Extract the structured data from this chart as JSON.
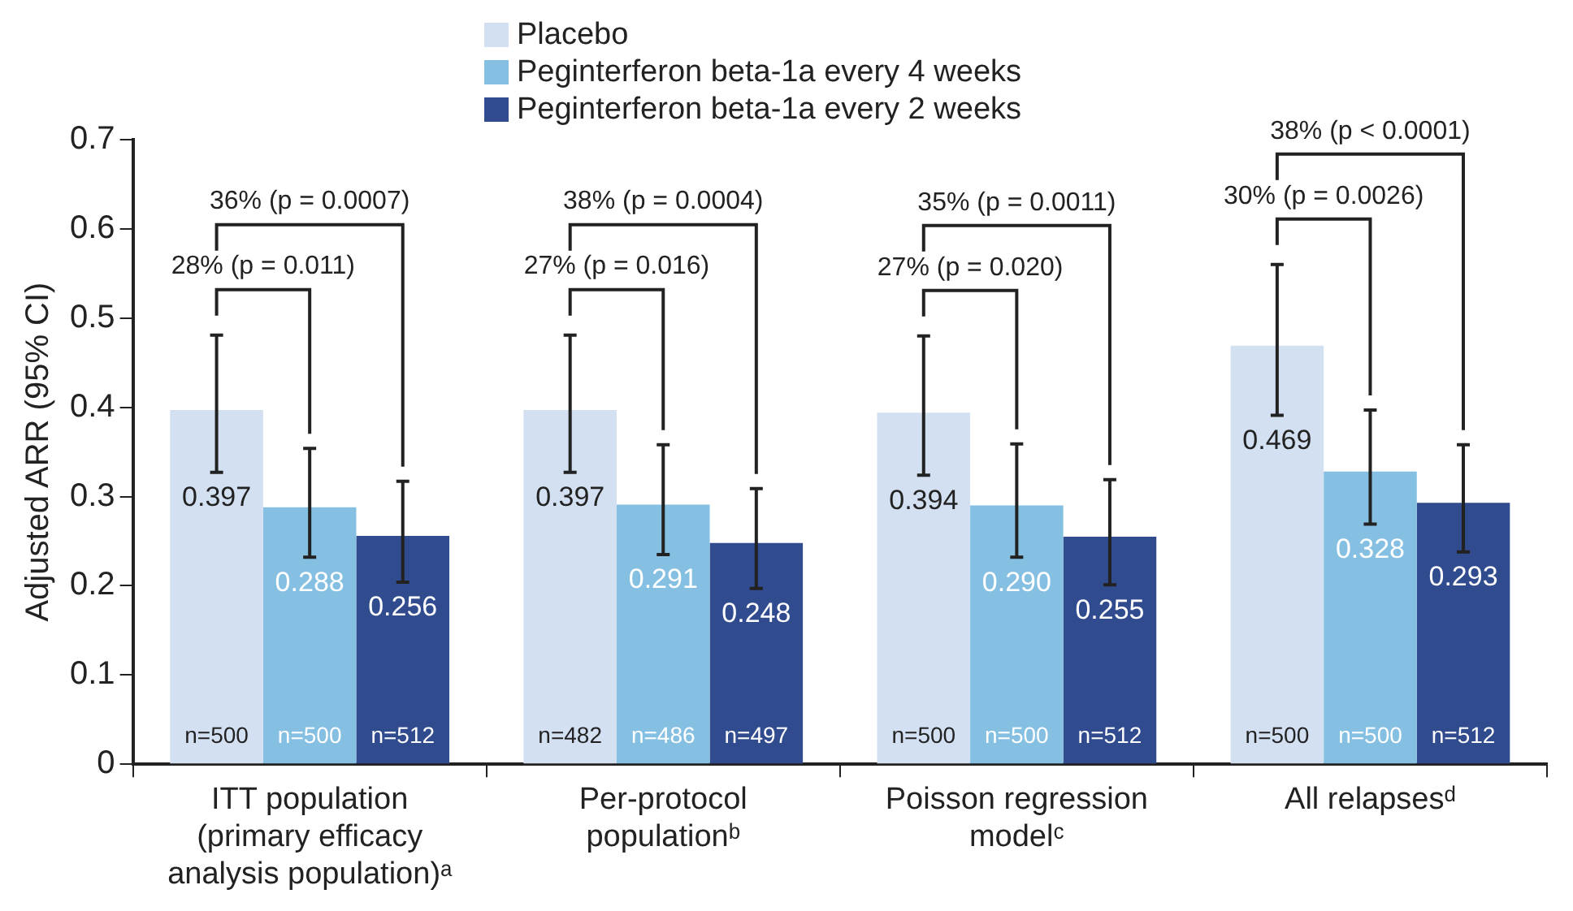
{
  "chart_data": {
    "type": "bar",
    "ylabel": "Adjusted ARR (95% CI)",
    "categories": [
      "ITT population (primary efficacy analysis population)ᵃ",
      "Per-protocol populationᵇ",
      "Poisson regression modelᶜ",
      "All relapsesᵈ"
    ],
    "series": [
      {
        "name": "Placebo",
        "color": "#d3e0f1",
        "values": [
          0.397,
          0.397,
          0.394,
          0.469
        ],
        "value_labels": [
          "0.397",
          "0.397",
          "0.394",
          "0.469"
        ],
        "errors": [
          [
            0.327,
            0.481
          ],
          [
            0.327,
            0.481
          ],
          [
            0.324,
            0.48
          ],
          [
            0.391,
            0.56
          ]
        ]
      },
      {
        "name": "Peginterferon beta-1a every 4 weeks",
        "color": "#85c0e3",
        "values": [
          0.288,
          0.291,
          0.29,
          0.328
        ],
        "value_labels": [
          "0.288",
          "0.291",
          "0.290",
          "0.328"
        ],
        "errors": [
          [
            0.232,
            0.354
          ],
          [
            0.235,
            0.358
          ],
          [
            0.232,
            0.359
          ],
          [
            0.269,
            0.397
          ]
        ]
      },
      {
        "name": "Peginterferon beta-1a every 2 weeks",
        "color": "#304b8e",
        "values": [
          0.256,
          0.248,
          0.255,
          0.293
        ],
        "value_labels": [
          "0.256",
          "0.248",
          "0.255",
          "0.293"
        ],
        "errors": [
          [
            0.204,
            0.317
          ],
          [
            0.197,
            0.309
          ],
          [
            0.201,
            0.319
          ],
          [
            0.238,
            0.358
          ]
        ]
      }
    ],
    "ylim": [
      0,
      0.7
    ],
    "yticks": [
      0,
      0.1,
      0.2,
      0.3,
      0.4,
      0.5,
      0.6,
      0.7
    ],
    "legend": "top",
    "grid": false,
    "annotations": [
      "n=500",
      "n=500",
      "n=512",
      "n=482",
      "n=486",
      "n=497",
      "n=500",
      "n=500",
      "n=512",
      "n=500",
      "n=500",
      "n=512",
      "28% (p = 0.011)",
      "36% (p = 0.0007)",
      "27% (p = 0.016)",
      "38% (p = 0.0004)",
      "27% (p = 0.020)",
      "35% (p = 0.0011)",
      "30% (p = 0.0026)",
      "38% (p < 0.0001)"
    ]
  }
}
